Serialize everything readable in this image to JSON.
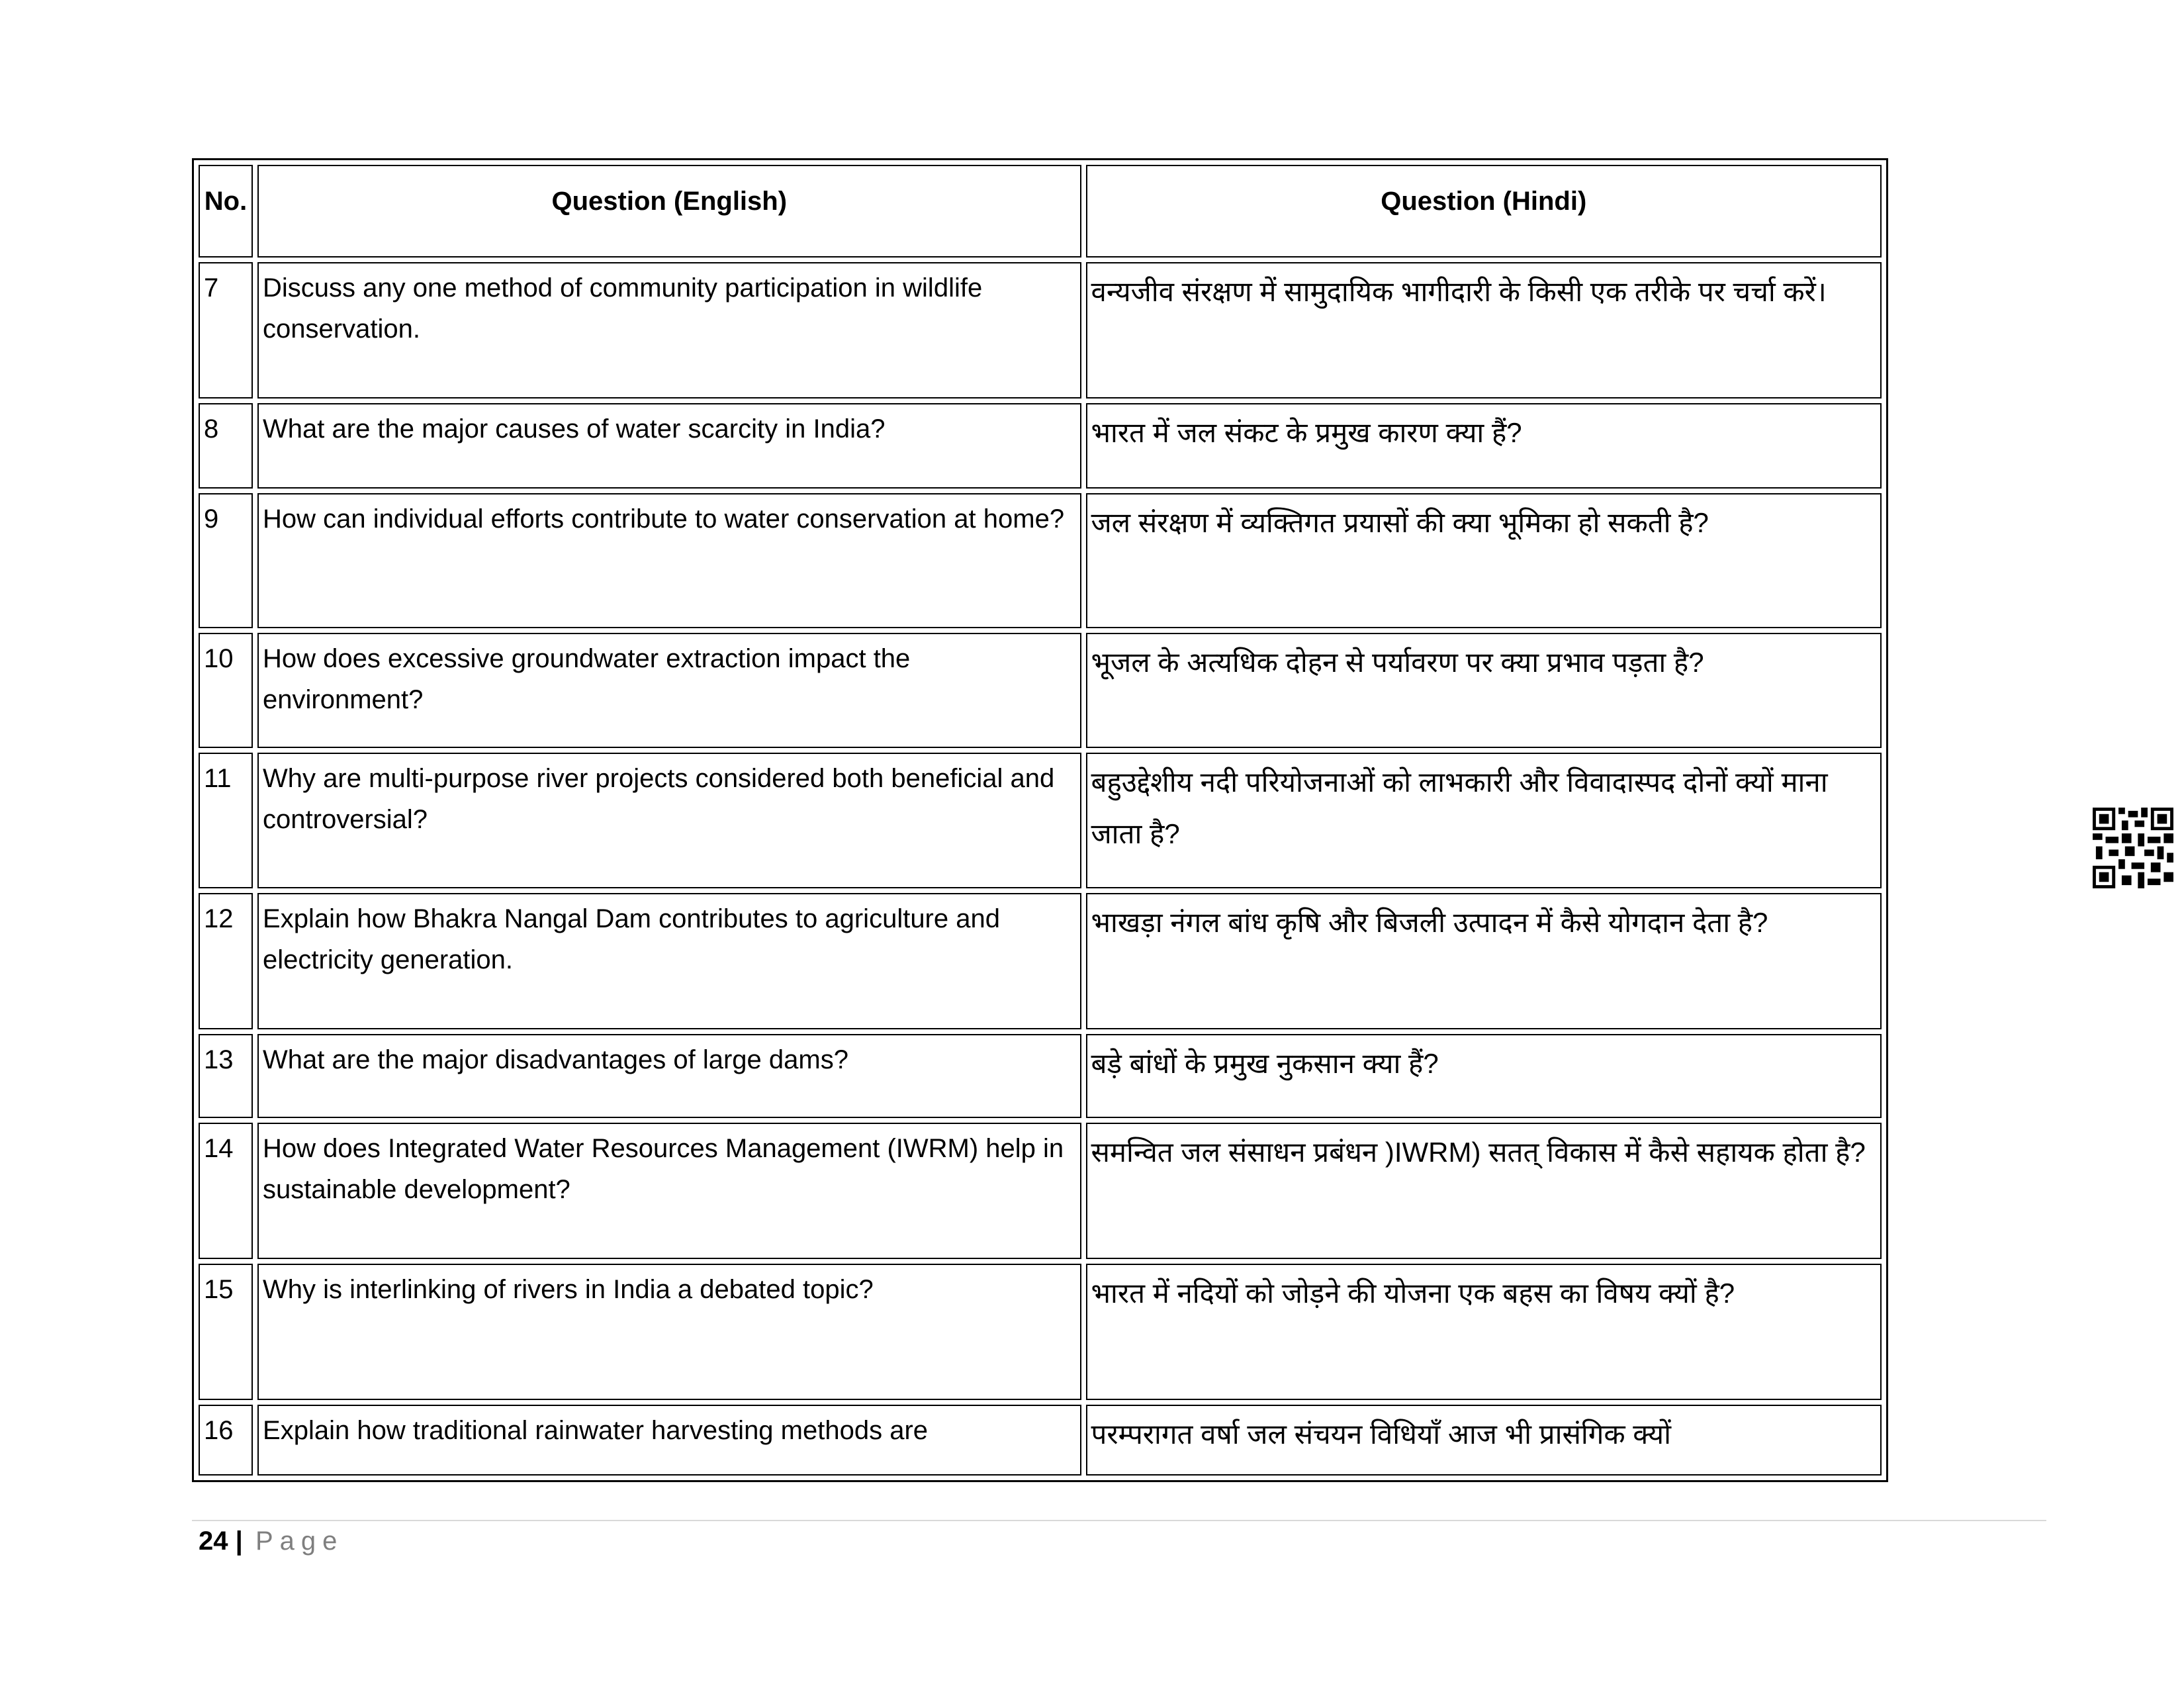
{
  "table": {
    "headers": [
      "No.",
      "Question (English)",
      "Question (Hindi)"
    ],
    "rows": [
      {
        "no": "7",
        "en": "Discuss any one method of community participation in wildlife conservation.",
        "hi": "वन्यजीव संरक्षण में सामुदायिक भागीदारी के किसी एक तरीके पर चर्चा करें।"
      },
      {
        "no": "8",
        "en": "What are the major causes of water scarcity in India?",
        "hi": "भारत में जल संकट के प्रमुख कारण क्या हैं?"
      },
      {
        "no": "9",
        "en": "How can individual efforts contribute to water conservation at home?",
        "hi": "जल संरक्षण में व्यक्तिगत प्रयासों की क्या भूमिका हो सकती है?"
      },
      {
        "no": "10",
        "en": "How does excessive groundwater extraction impact the environment?",
        "hi": "भूजल के अत्यधिक दोहन से पर्यावरण पर क्या प्रभाव पड़ता है?"
      },
      {
        "no": "11",
        "en": "Why are multi-purpose river projects considered both beneficial and controversial?",
        "hi": "बहुउद्देशीय नदी परियोजनाओं को लाभकारी और विवादास्पद दोनों क्यों माना जाता है?"
      },
      {
        "no": "12",
        "en": "Explain how Bhakra Nangal Dam contributes to agriculture and electricity generation.",
        "hi": "भाखड़ा नंगल बांध कृषि और बिजली उत्पादन में कैसे योगदान देता है?"
      },
      {
        "no": "13",
        "en": "What are the major disadvantages of large dams?",
        "hi": "बड़े बांधों के प्रमुख नुकसान क्या हैं?"
      },
      {
        "no": "14",
        "en": "How does Integrated Water Resources Management (IWRM) help in sustainable development?",
        "hi": "समन्वित जल संसाधन प्रबंधन )IWRM) सतत् विकास में कैसे सहायक होता है?"
      },
      {
        "no": "15",
        "en": "Why is interlinking of rivers in India a debated topic?",
        "hi": "भारत में नदियों को जोड़ने की योजना एक बहस का विषय क्यों है?"
      },
      {
        "no": "16",
        "en": "Explain how traditional rainwater harvesting methods are",
        "hi": "परम्परागत  वर्षा जल संचयन विधियाँ आज भी प्रासंगिक क्यों"
      }
    ]
  },
  "footer": {
    "page_number": "24",
    "separator": "|",
    "page_label": "Page"
  },
  "qr_code": {
    "icon": "qr-code-icon"
  }
}
